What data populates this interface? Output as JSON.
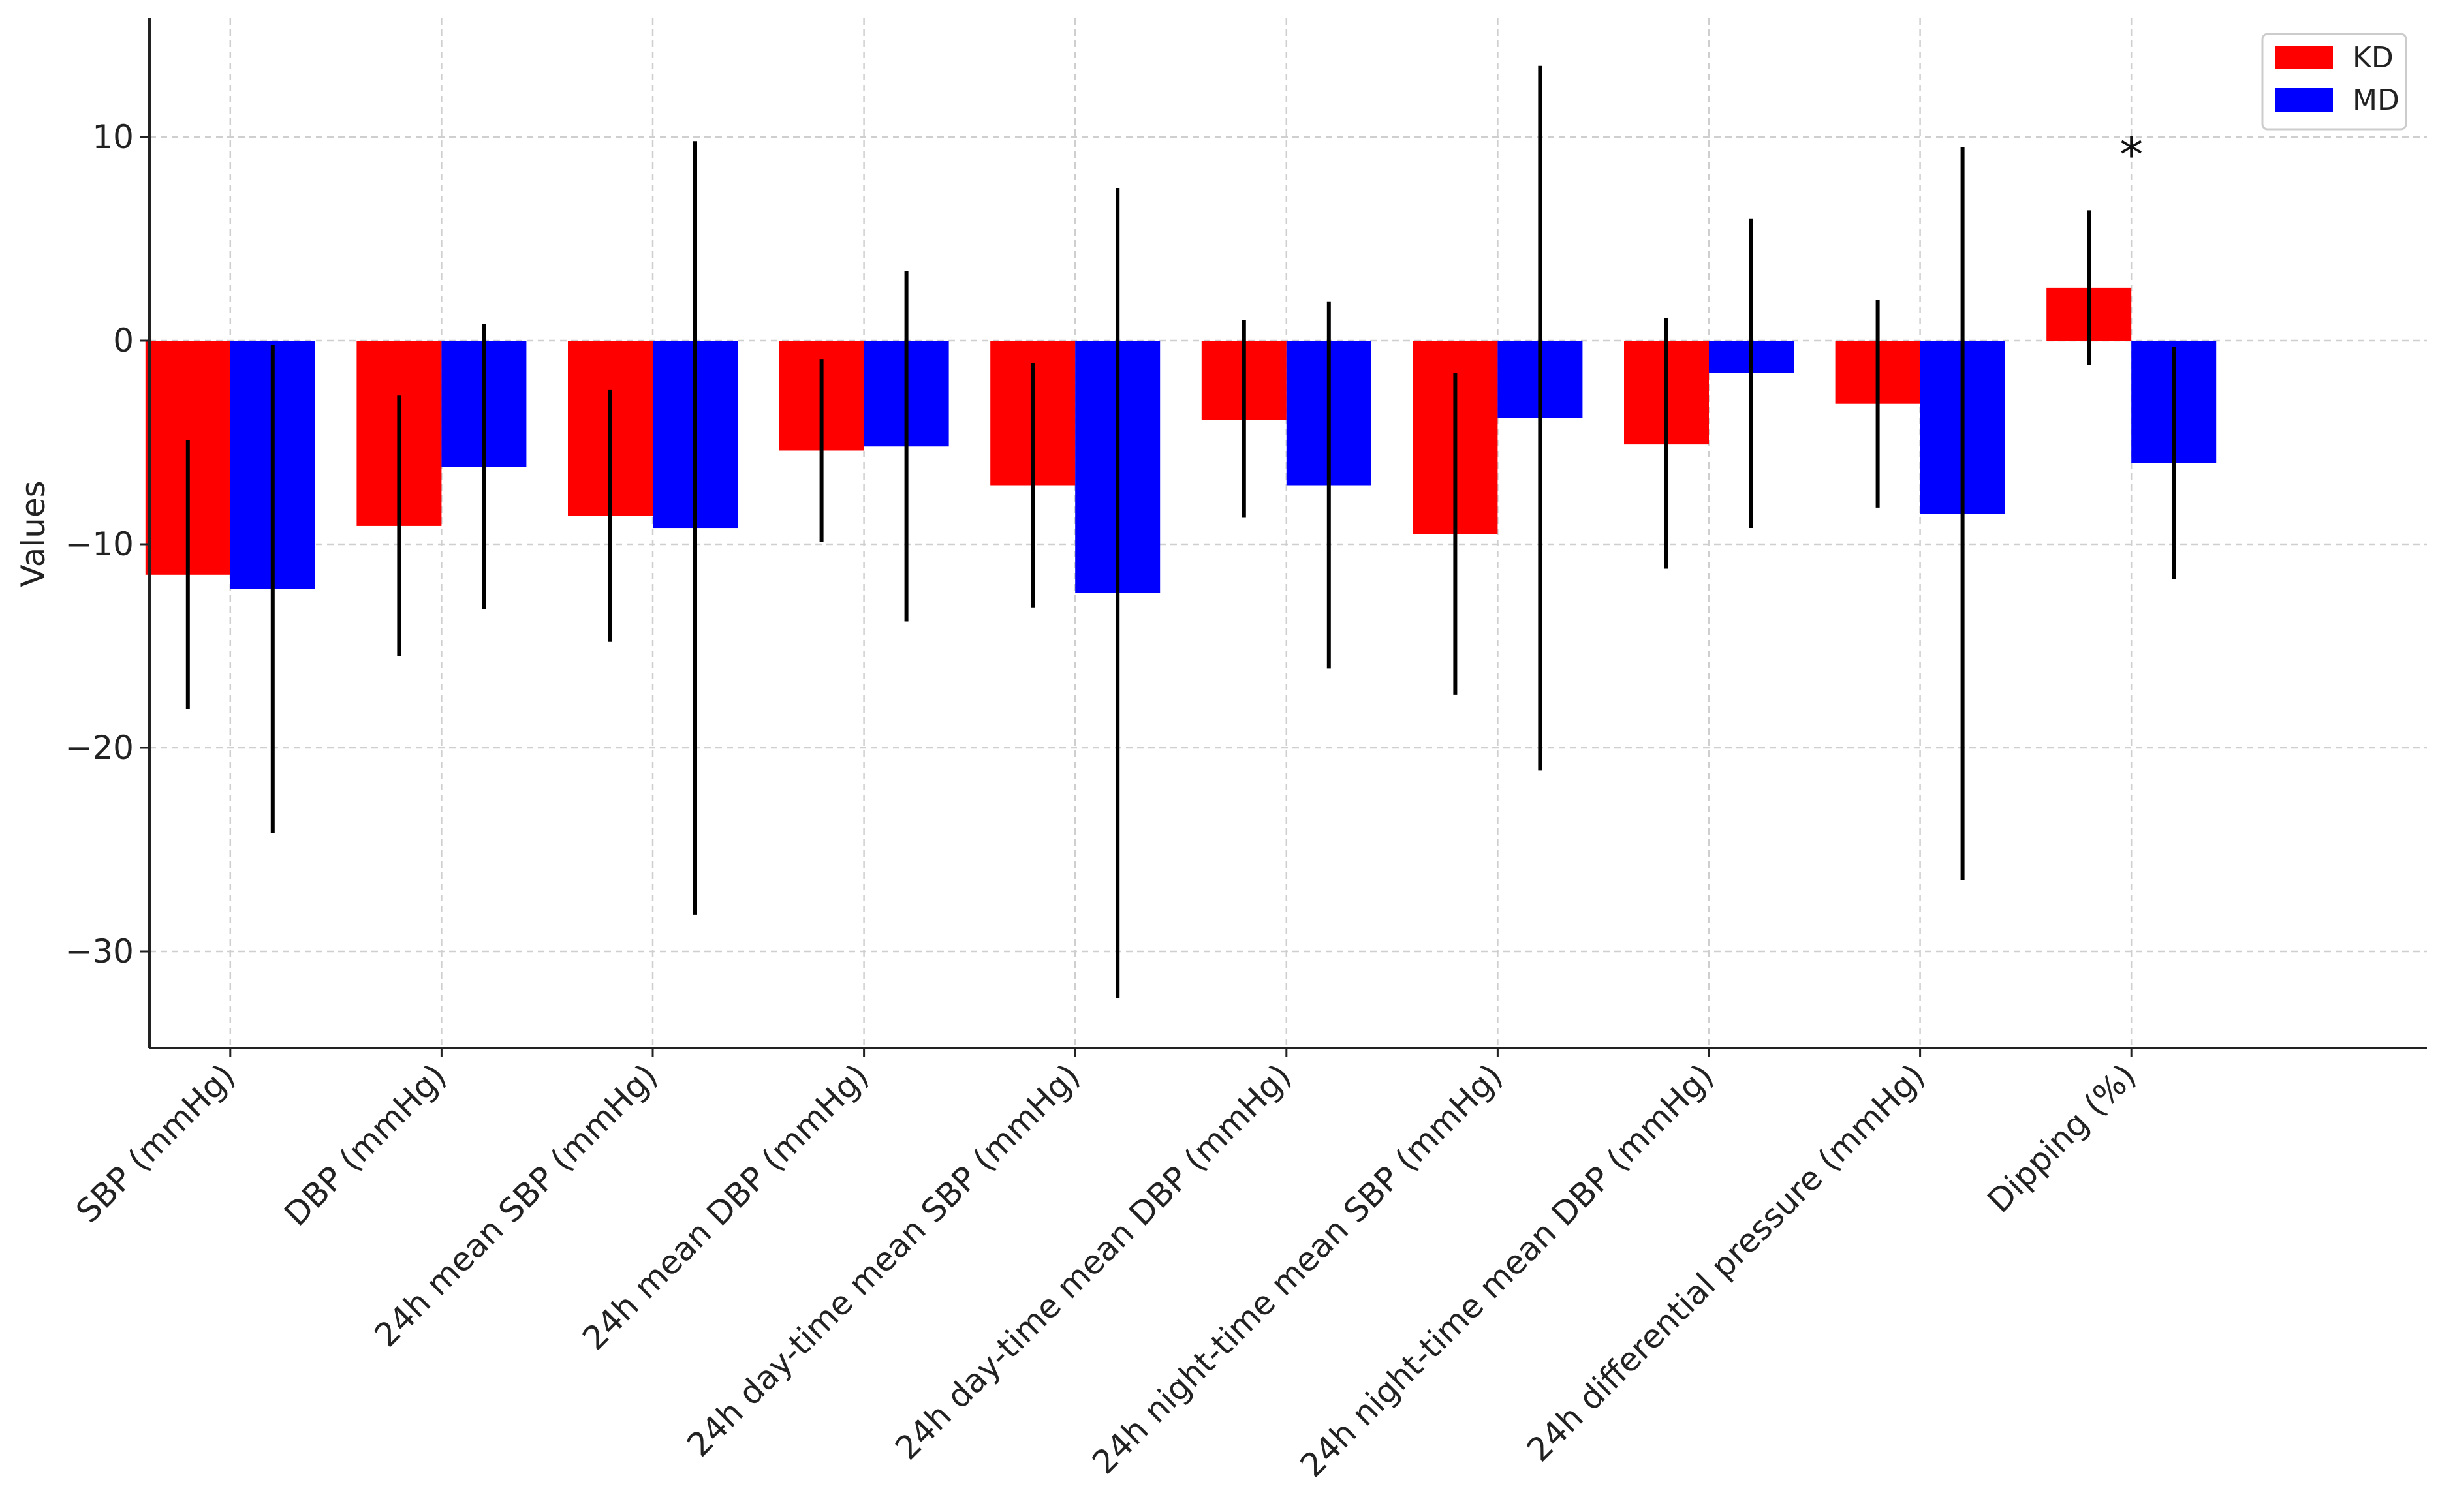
{
  "chart_data": {
    "type": "bar",
    "title": "",
    "xlabel": "",
    "ylabel": "Values",
    "ylim": [
      -35,
      15
    ],
    "yticks": [
      10,
      0,
      -10,
      -20,
      -30
    ],
    "grid": true,
    "legend_position": "top-right",
    "categories": [
      "SBP (mmHg)",
      "DBP (mmHg)",
      "24h mean SBP (mmHg)",
      "24h mean DBP (mmHg)",
      "24h day-time mean SBP (mmHg)",
      "24h day-time mean DBP (mmHg)",
      "24h night-time mean SBP (mmHg)",
      "24h night-time mean DBP (mmHg)",
      "24h differential pressure (mmHg)",
      "Dipping (%)"
    ],
    "series": [
      {
        "name": "KD",
        "color": "#ff0000",
        "values": [
          -11.5,
          -9.1,
          -8.6,
          -5.4,
          -7.1,
          -3.9,
          -9.5,
          -5.1,
          -3.1,
          2.6
        ],
        "error_low": [
          -18.1,
          -15.5,
          -14.8,
          -9.9,
          -13.1,
          -8.7,
          -17.4,
          -11.2,
          -8.2,
          -1.2
        ],
        "error_high": [
          -4.9,
          -2.7,
          -2.4,
          -0.9,
          -1.1,
          1.0,
          -1.6,
          1.1,
          2.0,
          6.4
        ]
      },
      {
        "name": "MD",
        "color": "#0000ff",
        "values": [
          -12.2,
          -6.2,
          -9.2,
          -5.2,
          -12.4,
          -7.1,
          -3.8,
          -1.6,
          -8.5,
          -6.0
        ],
        "error_low": [
          -24.2,
          -13.2,
          -28.2,
          -13.8,
          -32.3,
          -16.1,
          -21.1,
          -9.2,
          -26.5,
          -11.7
        ],
        "error_high": [
          -0.2,
          0.8,
          9.8,
          3.4,
          7.5,
          1.9,
          13.5,
          6.0,
          9.5,
          -0.3
        ]
      }
    ],
    "annotations": [
      {
        "text": "*",
        "category": "Dipping (%)",
        "y": 9.8
      }
    ]
  }
}
